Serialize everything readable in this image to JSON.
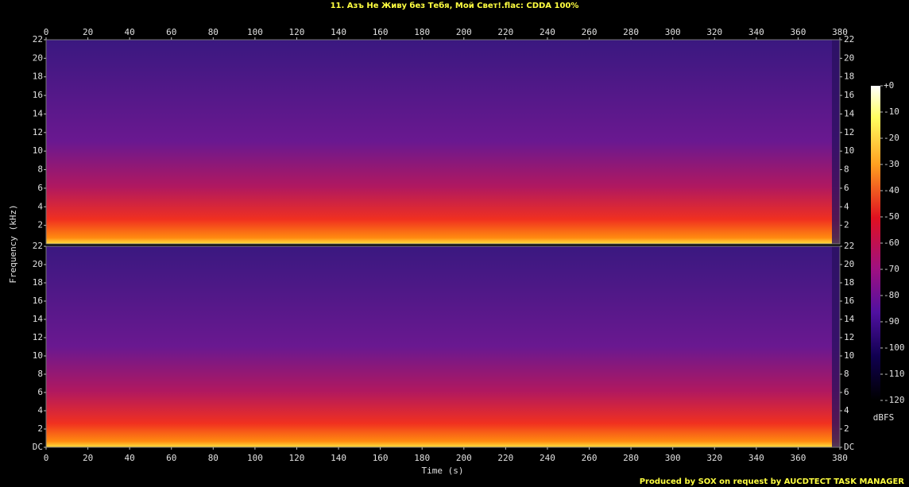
{
  "chart_data": [
    {
      "type": "spectrogram",
      "title": "11. Азъ Не Живу без Тебя, Мой Свет!.flac: CDDA 100%",
      "ylabel": "Frequency (kHz)",
      "xlim": [
        0,
        380
      ],
      "xticks": [
        0,
        20,
        40,
        60,
        80,
        100,
        120,
        140,
        160,
        180,
        200,
        220,
        240,
        260,
        280,
        300,
        320,
        340,
        360,
        380
      ],
      "ylim": [
        0,
        22
      ],
      "yticks": [
        2,
        4,
        6,
        8,
        10,
        12,
        14,
        16,
        18,
        20,
        22
      ]
    },
    {
      "type": "spectrogram",
      "xlabel": "Time (s)",
      "xlim": [
        0,
        380
      ],
      "xticks": [
        0,
        20,
        40,
        60,
        80,
        100,
        120,
        140,
        160,
        180,
        200,
        220,
        240,
        260,
        280,
        300,
        320,
        340,
        360,
        380
      ],
      "ylim": [
        0,
        22
      ],
      "yticks": [
        {
          "value": 0,
          "label": "DC"
        },
        2,
        4,
        6,
        8,
        10,
        12,
        14,
        16,
        18,
        20,
        22
      ],
      "colorbar": {
        "label": "dBFS",
        "lim": [
          -120,
          0
        ],
        "ticks": [
          {
            "value": 0,
            "label": "+0"
          },
          -10,
          -20,
          -30,
          -40,
          -50,
          -60,
          -70,
          -80,
          -90,
          -100,
          -110,
          -120
        ]
      }
    }
  ],
  "footer": "Produced by SOX on request by AUCDTECT TASK MANAGER"
}
